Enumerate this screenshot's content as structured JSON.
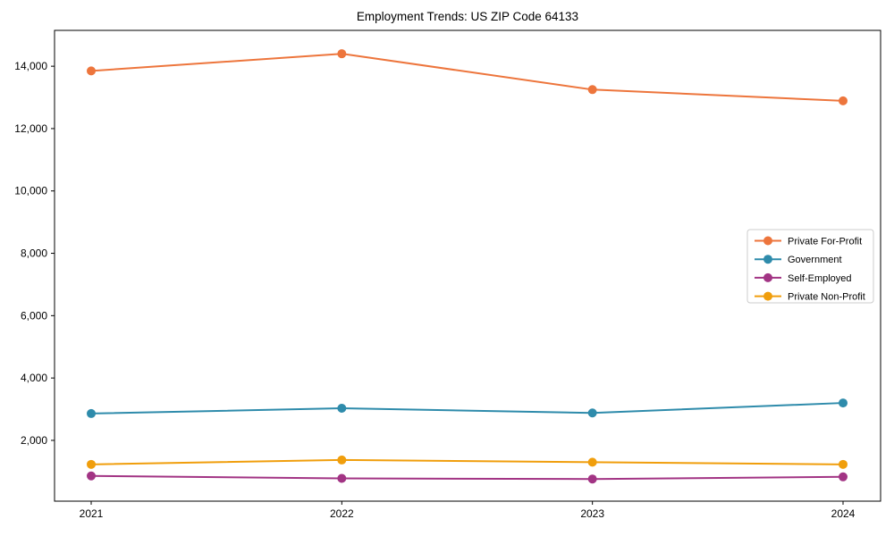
{
  "chart_data": {
    "type": "line",
    "title": "Employment Trends: US ZIP Code 64133",
    "xlabel": "",
    "ylabel": "",
    "x": [
      2021,
      2022,
      2023,
      2024
    ],
    "x_tick_labels": [
      "2021",
      "2022",
      "2023",
      "2024"
    ],
    "y_ticks": [
      {
        "value": 2000,
        "label": "2,000"
      },
      {
        "value": 4000,
        "label": "4,000"
      },
      {
        "value": 6000,
        "label": "6,000"
      },
      {
        "value": 8000,
        "label": "8,000"
      },
      {
        "value": 10000,
        "label": "10,000"
      },
      {
        "value": 12000,
        "label": "12,000"
      },
      {
        "value": 14000,
        "label": "14,000"
      }
    ],
    "ylim": [
      50,
      15150
    ],
    "grid": false,
    "marker": "circle",
    "series": [
      {
        "name": "Private For-Profit",
        "color": "#ED753C",
        "values": [
          13850,
          14400,
          13250,
          12890
        ]
      },
      {
        "name": "Government",
        "color": "#2E8BAB",
        "values": [
          2860,
          3030,
          2880,
          3200
        ]
      },
      {
        "name": "Self-Employed",
        "color": "#A23484",
        "values": [
          860,
          780,
          760,
          830
        ]
      },
      {
        "name": "Private Non-Profit",
        "color": "#F09E0C",
        "values": [
          1230,
          1370,
          1300,
          1230
        ]
      }
    ],
    "legend": {
      "position": "center-right",
      "border_color": "#cccccc",
      "background": "#ffffff"
    }
  }
}
